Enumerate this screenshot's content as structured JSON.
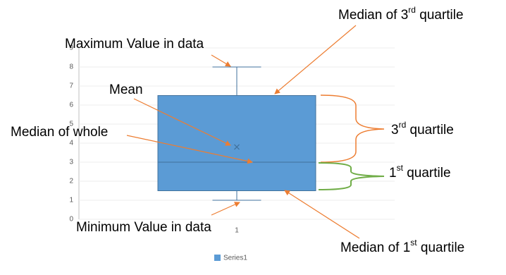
{
  "chart_data": {
    "type": "box",
    "categories": [
      "1"
    ],
    "series": [
      {
        "name": "Series1",
        "color": "#5b9bd5",
        "min": 1,
        "q1": 1.5,
        "median": 3,
        "q3": 6.5,
        "max": 8,
        "mean": 3.8
      }
    ],
    "ylim": [
      0,
      9
    ],
    "yticks": [
      0,
      1,
      2,
      3,
      4,
      5,
      6,
      7,
      8,
      9
    ],
    "grid": true,
    "annotations": [
      "Maximum Value in data",
      "Mean",
      "Median of whole",
      "Minimum Value in data",
      {
        "before": "Median of 3",
        "sup": "rd",
        "after": " quartile"
      },
      {
        "before": "3",
        "sup": "rd",
        "after": " quartile"
      },
      {
        "before": "1",
        "sup": "st",
        "after": " quartile"
      },
      {
        "before": "Median of 1",
        "sup": "st",
        "after": "  quartile"
      }
    ]
  }
}
